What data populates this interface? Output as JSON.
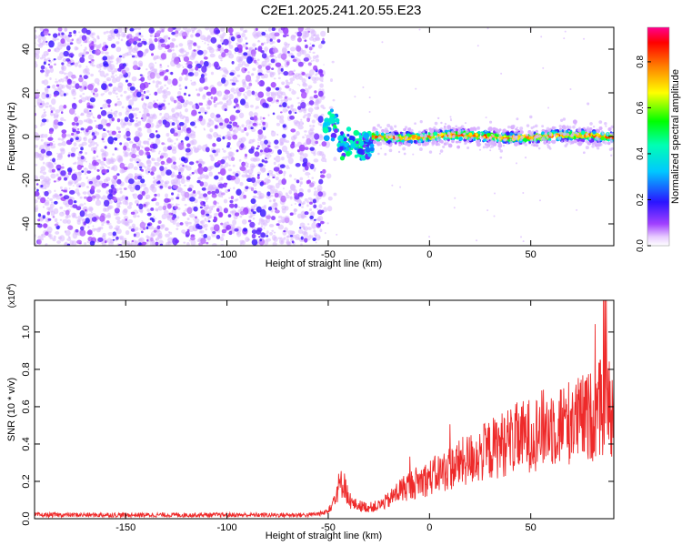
{
  "title": "C2E1.2025.241.20.55.E23",
  "colors": {
    "snr_line": "#ee2a2a",
    "spectrum_base": "#8a2be2"
  },
  "chart_data": [
    {
      "type": "heatmap",
      "xlabel": "Height of straight line (km)",
      "ylabel": "Frequency (Hz)",
      "xlim": [
        -195,
        91
      ],
      "ylim": [
        -50,
        50
      ],
      "xticks": [
        -150,
        -100,
        -50,
        0,
        50
      ],
      "yticks": [
        -40,
        -20,
        0,
        20,
        40
      ],
      "grid": false,
      "noise_region_x": [
        -195,
        -52
      ],
      "transition_x": [
        -52,
        -28
      ],
      "tone_region_x": [
        -28,
        91
      ],
      "tone_center_freq": 0,
      "colorbar": {
        "label": "Normalized spectral amplitude",
        "range": [
          0.0,
          0.95
        ],
        "ticks": [
          0.0,
          0.2,
          0.4,
          0.6,
          0.8
        ],
        "colormap": "rainbow"
      }
    },
    {
      "type": "line",
      "xlabel": "Height of straight line (km)",
      "ylabel": "SNR (10 * v/v)",
      "yscale_note": "(x10^4)",
      "xlim": [
        -195,
        91
      ],
      "ylim": [
        0.0,
        1.17
      ],
      "xticks": [
        -150,
        -100,
        -50,
        0,
        50
      ],
      "yticks": [
        0.0,
        0.2,
        0.4,
        0.6,
        0.8,
        1.0
      ],
      "grid": false,
      "series": [
        {
          "x": [
            -195,
            -150,
            -100,
            -60,
            -52,
            -48,
            -45,
            -42,
            -40,
            -38,
            -35,
            -30,
            -25,
            -20,
            -15,
            -10,
            -5,
            0,
            10,
            20,
            30,
            40,
            50,
            60,
            70,
            80,
            85,
            88,
            91
          ],
          "y": [
            0.02,
            0.02,
            0.02,
            0.02,
            0.03,
            0.08,
            0.17,
            0.2,
            0.1,
            0.08,
            0.07,
            0.06,
            0.07,
            0.1,
            0.15,
            0.18,
            0.2,
            0.22,
            0.27,
            0.32,
            0.37,
            0.42,
            0.45,
            0.5,
            0.52,
            0.55,
            0.6,
            0.62,
            0.58
          ]
        }
      ]
    }
  ]
}
